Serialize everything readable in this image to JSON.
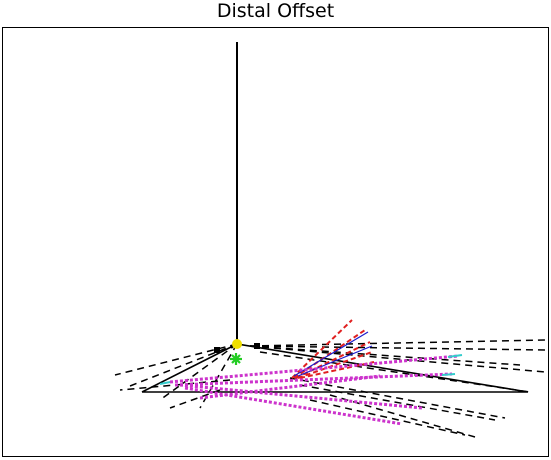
{
  "title": "Distal Offset",
  "colors": {
    "background": "#ffffff",
    "frame": "#000000",
    "solid_lines": "#000000",
    "dashed_lines": "#000000",
    "red_dashed": "#e02020",
    "blue_lines": "#1a1acc",
    "magenta_dotted": "#cc33cc",
    "cyan_accent": "#33cccc",
    "yellow_marker": "#f0e000",
    "green_marker": "#22cc22"
  }
}
